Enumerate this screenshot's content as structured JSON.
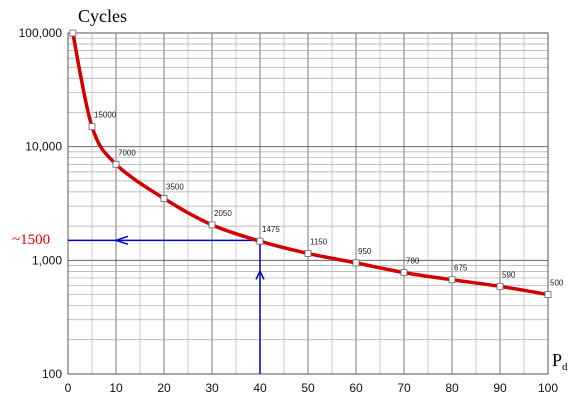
{
  "chart_data": {
    "type": "line",
    "title": "Cycles",
    "xlabel": "P",
    "xlabel_sub": "d",
    "xlim": [
      0,
      100
    ],
    "ylim": [
      100,
      100000
    ],
    "yscale": "log",
    "grid": true,
    "x_ticks": [
      "0",
      "10",
      "20",
      "30",
      "40",
      "50",
      "60",
      "70",
      "80",
      "90",
      "100"
    ],
    "y_ticks": [
      "100",
      "1,000",
      "10,000",
      "100,000"
    ],
    "series": [
      {
        "color": "#d40000",
        "points": [
          {
            "x": 1,
            "y": 100000,
            "label": ""
          },
          {
            "x": 5,
            "y": 15000,
            "label": "15000"
          },
          {
            "x": 10,
            "y": 7000,
            "label": "7000"
          },
          {
            "x": 20,
            "y": 3500,
            "label": "3500"
          },
          {
            "x": 30,
            "y": 2050,
            "label": "2050"
          },
          {
            "x": 40,
            "y": 1475,
            "label": "1475"
          },
          {
            "x": 50,
            "y": 1150,
            "label": "1150"
          },
          {
            "x": 60,
            "y": 950,
            "label": "950"
          },
          {
            "x": 70,
            "y": 780,
            "label": "780"
          },
          {
            "x": 80,
            "y": 675,
            "label": "675"
          },
          {
            "x": 90,
            "y": 590,
            "label": "590"
          },
          {
            "x": 100,
            "y": 500,
            "label": "500"
          }
        ]
      }
    ],
    "annotation": {
      "text": "~1500",
      "x": 40,
      "y": 1500,
      "color": "#e00000",
      "arrow_color": "#0000cc"
    }
  }
}
